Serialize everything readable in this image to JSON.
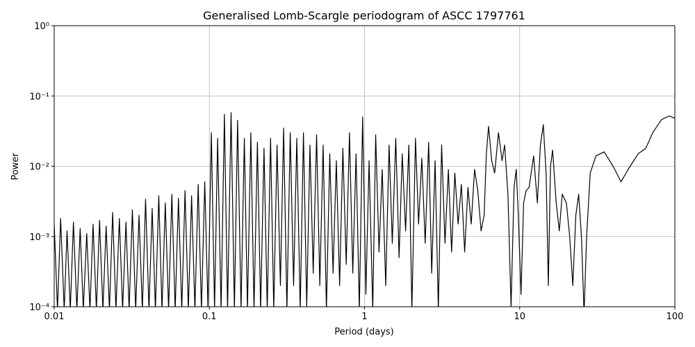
{
  "chart_data": {
    "type": "line",
    "title": "Generalised Lomb-Scargle periodogram of ASCC 1797761",
    "x_label": "Period (days)",
    "y_label": "Power",
    "x_scale": "log",
    "y_scale": "log",
    "grid": true,
    "color": "#000000",
    "xlim": [
      0.01,
      100
    ],
    "xticks": [
      0.01,
      0.1,
      1,
      10,
      100
    ],
    "ylim": [
      0.0001,
      1
    ],
    "yticks": [
      {
        "value": 0.0001,
        "label": "10⁻⁴"
      },
      {
        "value": 0.001,
        "label": "10⁻³"
      },
      {
        "value": 0.01,
        "label": "10⁻²"
      },
      {
        "value": 0.1,
        "label": "10⁻¹"
      },
      {
        "value": 1,
        "label": "10⁰"
      }
    ],
    "x": [
      0.01,
      0.0105,
      0.011,
      0.0116,
      0.0121,
      0.0127,
      0.0133,
      0.014,
      0.0147,
      0.0154,
      0.0162,
      0.017,
      0.0178,
      0.0187,
      0.0196,
      0.0206,
      0.0216,
      0.0227,
      0.0238,
      0.025,
      0.0263,
      0.0276,
      0.029,
      0.0304,
      0.0319,
      0.0335,
      0.0352,
      0.037,
      0.0388,
      0.0408,
      0.0428,
      0.0449,
      0.0472,
      0.0495,
      0.052,
      0.0546,
      0.0573,
      0.0602,
      0.0632,
      0.0664,
      0.0697,
      0.0732,
      0.0768,
      0.0807,
      0.0847,
      0.0889,
      0.0934,
      0.098,
      0.103,
      0.108,
      0.113,
      0.119,
      0.125,
      0.131,
      0.138,
      0.145,
      0.152,
      0.16,
      0.168,
      0.176,
      0.185,
      0.194,
      0.204,
      0.214,
      0.225,
      0.236,
      0.248,
      0.26,
      0.273,
      0.287,
      0.301,
      0.316,
      0.332,
      0.349,
      0.366,
      0.385,
      0.404,
      0.424,
      0.445,
      0.467,
      0.491,
      0.515,
      0.541,
      0.568,
      0.597,
      0.627,
      0.658,
      0.691,
      0.725,
      0.762,
      0.8,
      0.84,
      0.882,
      0.926,
      0.972,
      1.02,
      1.07,
      1.13,
      1.18,
      1.24,
      1.3,
      1.37,
      1.44,
      1.51,
      1.59,
      1.67,
      1.75,
      1.84,
      1.93,
      2.02,
      2.13,
      2.23,
      2.34,
      2.46,
      2.59,
      2.71,
      2.85,
      2.99,
      3.14,
      3.3,
      3.47,
      3.64,
      3.82,
      4.01,
      4.21,
      4.42,
      4.64,
      4.87,
      5.12,
      5.37,
      5.64,
      5.9,
      6.1,
      6.3,
      6.6,
      6.9,
      7.3,
      7.7,
      8,
      8.4,
      8.8,
      9.2,
      9.5,
      9.8,
      10.2,
      10.6,
      11,
      11.5,
      12.3,
      13,
      13.6,
      14.2,
      14.8,
      15.3,
      15.8,
      16.3,
      17.2,
      18,
      18.8,
      20,
      21,
      22,
      23,
      24,
      25,
      26,
      27,
      28.5,
      31,
      35,
      40,
      45,
      50,
      58,
      65,
      72,
      82,
      92,
      100
    ],
    "values": [
      0.0015,
      9e-05,
      0.0018,
      9e-05,
      0.0012,
      9e-05,
      0.0016,
      9e-05,
      0.0013,
      9e-05,
      0.0011,
      9e-05,
      0.0015,
      9e-05,
      0.0017,
      9e-05,
      0.0014,
      9e-05,
      0.0022,
      9e-05,
      0.0018,
      9e-05,
      0.0016,
      9e-05,
      0.0024,
      9e-05,
      0.002,
      9e-05,
      0.0034,
      9e-05,
      0.0025,
      9e-05,
      0.0038,
      9e-05,
      0.003,
      9e-05,
      0.004,
      9e-05,
      0.0035,
      9e-05,
      0.0045,
      9e-05,
      0.0038,
      9e-05,
      0.0055,
      9e-05,
      0.006,
      9e-05,
      0.03,
      9e-05,
      0.025,
      9e-05,
      0.055,
      9e-05,
      0.058,
      9e-05,
      0.045,
      9e-05,
      0.025,
      9e-05,
      0.03,
      9e-05,
      0.022,
      9e-05,
      0.018,
      9e-05,
      0.025,
      9e-05,
      0.02,
      0.0002,
      0.035,
      9e-05,
      0.03,
      0.0002,
      0.025,
      9e-05,
      0.03,
      0.0001,
      0.02,
      0.0003,
      0.028,
      0.0002,
      0.02,
      9e-05,
      0.015,
      0.0003,
      0.012,
      0.0002,
      0.018,
      0.0004,
      0.03,
      0.0003,
      0.015,
      9e-05,
      0.05,
      0.00015,
      0.012,
      9e-05,
      0.028,
      0.0006,
      0.009,
      0.0002,
      0.02,
      0.0008,
      0.025,
      0.0005,
      0.015,
      0.0012,
      0.02,
      9e-05,
      0.025,
      0.0015,
      0.013,
      0.0008,
      0.022,
      0.0003,
      0.012,
      9e-05,
      0.02,
      0.0008,
      0.009,
      0.0006,
      0.008,
      0.0015,
      0.0055,
      0.0006,
      0.005,
      0.0015,
      0.009,
      0.0045,
      0.0012,
      0.002,
      0.015,
      0.037,
      0.012,
      0.008,
      0.03,
      0.012,
      0.02,
      0.004,
      0.0001,
      0.005,
      0.009,
      0.002,
      0.00015,
      0.003,
      0.0045,
      0.005,
      0.014,
      0.003,
      0.02,
      0.039,
      0.008,
      0.0002,
      0.01,
      0.017,
      0.003,
      0.0012,
      0.004,
      0.003,
      0.001,
      0.0002,
      0.002,
      0.004,
      0.001,
      8e-05,
      0.001,
      0.008,
      0.014,
      0.016,
      0.01,
      0.006,
      0.009,
      0.015,
      0.018,
      0.03,
      0.046,
      0.052,
      0.048
    ]
  }
}
